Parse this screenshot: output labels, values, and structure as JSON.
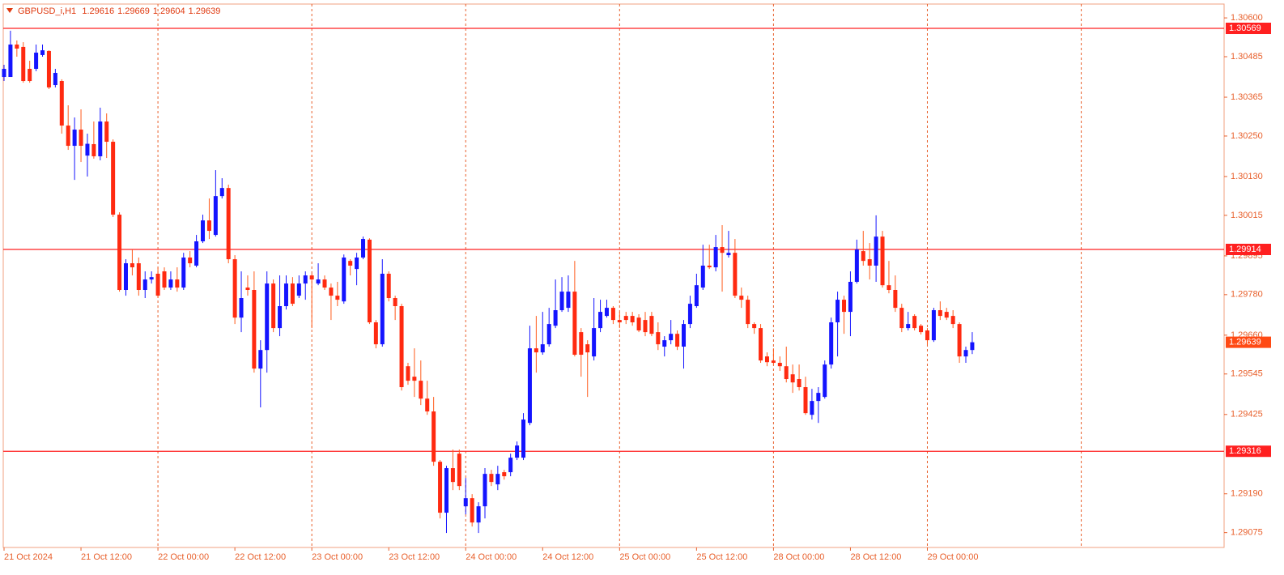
{
  "chart_data": {
    "type": "candlestick",
    "title": "GBPUSD_i,H1",
    "categories": [
      "21 Oct 2024",
      null,
      null,
      null,
      null,
      null,
      null,
      null,
      null,
      null,
      null,
      null,
      "21 Oct 12:00",
      null,
      null,
      null,
      null,
      null,
      null,
      null,
      null,
      null,
      null,
      null,
      "22 Oct 00:00",
      null,
      null,
      null,
      null,
      null,
      null,
      null,
      null,
      null,
      null,
      null,
      "22 Oct 12:00",
      null,
      null,
      null,
      null,
      null,
      null,
      null,
      null,
      null,
      null,
      null,
      "23 Oct 00:00",
      null,
      null,
      null,
      null,
      null,
      null,
      null,
      null,
      null,
      null,
      null,
      "23 Oct 12:00",
      null,
      null,
      null,
      null,
      null,
      null,
      null,
      null,
      null,
      null,
      null,
      "24 Oct 00:00",
      null,
      null,
      null,
      null,
      null,
      null,
      null,
      null,
      null,
      null,
      null,
      "24 Oct 12:00",
      null,
      null,
      null,
      null,
      null,
      null,
      null,
      null,
      null,
      null,
      null,
      "25 Oct 00:00",
      null,
      null,
      null,
      null,
      null,
      null,
      null,
      null,
      null,
      null,
      null,
      "25 Oct 12:00",
      null,
      null,
      null,
      null,
      null,
      null,
      null,
      null,
      null,
      null,
      null,
      "28 Oct 00:00",
      null,
      null,
      null,
      null,
      null,
      null,
      null,
      null,
      null,
      null,
      null,
      "28 Oct 12:00",
      null,
      null,
      null,
      null,
      null,
      null,
      null,
      null,
      null,
      null,
      null,
      "29 Oct 00:00",
      null,
      null,
      null,
      null,
      null,
      null,
      null
    ],
    "open": [
      1.30425,
      1.30425,
      1.30521,
      1.30514,
      1.30449,
      1.30449,
      1.3049,
      1.30502,
      1.30401,
      1.30413,
      1.30281,
      1.30221,
      1.30269,
      1.30192,
      1.30226,
      1.3019,
      1.30293,
      1.30233,
      1.30017,
      1.29794,
      1.29873,
      1.29873,
      1.29794,
      1.29825,
      1.29842,
      1.29849,
      1.29801,
      1.29825,
      1.29801,
      1.2989,
      1.29866,
      1.29938,
      1.3,
      1.29957,
      1.30072,
      1.30096,
      1.29885,
      1.29712,
      1.29801,
      1.29794,
      1.29561,
      1.29616,
      1.29813,
      1.29681,
      1.29746,
      1.29813,
      1.29777,
      1.29813,
      1.29837,
      1.29813,
      1.29825,
      1.29801,
      1.29777,
      1.2976,
      1.2988,
      1.29856,
      1.2989,
      1.29943,
      1.29698,
      1.29633,
      1.29842,
      1.2977,
      1.29746,
      1.29568,
      1.29537,
      1.29525,
      1.29472,
      1.29434,
      1.29285,
      1.29134,
      1.29266,
      1.29309,
      1.29153,
      1.29177,
      1.29105,
      1.29153,
      1.29249,
      1.29218,
      1.29254,
      1.29254,
      1.29297,
      1.29297,
      1.294,
      1.29621,
      1.29609,
      1.29633,
      1.29688,
      1.29734,
      1.29741,
      1.29789,
      1.29669,
      1.29633,
      1.29597,
      1.29681,
      1.29717,
      1.29741,
      1.29705,
      1.29717,
      1.29717,
      1.29712,
      1.29705,
      1.29717,
      1.29669,
      1.29626,
      1.29645,
      1.29664,
      1.29626,
      1.29693,
      1.29746,
      1.29801,
      1.29866,
      1.29861,
      1.29921,
      1.29897,
      1.29904,
      1.29777,
      1.29765,
      1.29693,
      1.29681,
      1.29597,
      1.29585,
      1.29578,
      1.29568,
      1.29544,
      1.2953,
      1.29506,
      1.29424,
      1.29465,
      1.29477,
      1.29573,
      1.29698,
      1.29765,
      1.29729,
      1.29818,
      1.29909,
      1.29885,
      1.29866,
      1.29952,
      1.29808,
      1.29794,
      1.29741,
      1.29681,
      1.29717,
      1.29688,
      1.29674,
      1.29645,
      1.29734,
      1.29729,
      1.29717,
      1.29693,
      1.29597,
      1.29616
    ],
    "high": [
      1.30461,
      1.30562,
      1.30533,
      1.30528,
      1.30473,
      1.30521,
      1.30521,
      1.30504,
      1.30449,
      1.30418,
      1.30341,
      1.30305,
      1.30329,
      1.30257,
      1.30293,
      1.30334,
      1.30317,
      1.3024,
      1.30024,
      1.29885,
      1.29914,
      1.2989,
      1.29849,
      1.29849,
      1.29861,
      1.29861,
      1.29849,
      1.29861,
      1.29904,
      1.29909,
      1.29957,
      1.30017,
      1.30065,
      1.30149,
      1.30125,
      1.30106,
      1.29897,
      1.29849,
      1.29837,
      1.29849,
      1.29645,
      1.29849,
      1.29825,
      1.29837,
      1.29837,
      1.29832,
      1.29837,
      1.29849,
      1.29842,
      1.29873,
      1.29837,
      1.29813,
      1.29818,
      1.29899,
      1.29885,
      1.29904,
      1.29952,
      1.29947,
      1.29705,
      1.29885,
      1.29849,
      1.29777,
      1.29753,
      1.29578,
      1.29621,
      1.29585,
      1.29525,
      1.29477,
      1.2929,
      1.29273,
      1.29321,
      1.29321,
      1.29237,
      1.29189,
      1.29165,
      1.29266,
      1.29261,
      1.29273,
      1.29261,
      1.29309,
      1.29345,
      1.29429,
      1.29688,
      1.29717,
      1.29729,
      1.29741,
      1.29825,
      1.29832,
      1.29837,
      1.2988,
      1.29681,
      1.29645,
      1.2977,
      1.29765,
      1.29765,
      1.29746,
      1.29729,
      1.29729,
      1.29729,
      1.29722,
      1.29729,
      1.29729,
      1.29698,
      1.29657,
      1.29705,
      1.29674,
      1.29705,
      1.29777,
      1.29842,
      1.29928,
      1.29928,
      1.29957,
      1.29986,
      1.29969,
      1.29945,
      1.29801,
      1.29777,
      1.29698,
      1.29693,
      1.29609,
      1.29621,
      1.29597,
      1.29626,
      1.29573,
      1.29573,
      1.29537,
      1.29501,
      1.29506,
      1.29585,
      1.29712,
      1.29789,
      1.29777,
      1.29849,
      1.29943,
      1.29969,
      1.29933,
      1.30015,
      1.29969,
      1.2988,
      1.29837,
      1.29753,
      1.29729,
      1.29722,
      1.29693,
      1.29681,
      1.29741,
      1.2976,
      1.29741,
      1.29734,
      1.29698,
      1.29626,
      1.29669
    ],
    "low": [
      1.30413,
      1.30425,
      1.30485,
      1.30408,
      1.30408,
      1.30442,
      1.30485,
      1.30389,
      1.30394,
      1.30257,
      1.30209,
      1.3012,
      1.30173,
      1.3013,
      1.30183,
      1.30178,
      1.30185,
      1.3001,
      1.29789,
      1.29777,
      1.29837,
      1.29777,
      1.2977,
      1.29813,
      1.2977,
      1.29794,
      1.29794,
      1.29789,
      1.29794,
      1.29861,
      1.29861,
      1.29933,
      1.29945,
      1.29952,
      1.30065,
      1.29873,
      1.29693,
      1.29669,
      1.29777,
      1.29549,
      1.29446,
      1.29549,
      1.29669,
      1.29657,
      1.29736,
      1.29746,
      1.2977,
      1.29765,
      1.29681,
      1.29808,
      1.29794,
      1.29705,
      1.29746,
      1.29753,
      1.29837,
      1.29808,
      1.29885,
      1.29693,
      1.29621,
      1.29626,
      1.2976,
      1.29705,
      1.29496,
      1.29513,
      1.29477,
      1.29453,
      1.29424,
      1.29273,
      1.29117,
      1.29074,
      1.29201,
      1.29201,
      1.29129,
      1.29093,
      1.29074,
      1.29117,
      1.29213,
      1.29201,
      1.29232,
      1.29242,
      1.2929,
      1.2929,
      1.29393,
      1.29549,
      1.29602,
      1.29626,
      1.29681,
      1.29729,
      1.29729,
      1.29597,
      1.29537,
      1.29477,
      1.29585,
      1.29669,
      1.29712,
      1.29693,
      1.29681,
      1.29693,
      1.29688,
      1.29669,
      1.29657,
      1.29657,
      1.29616,
      1.29597,
      1.29633,
      1.29616,
      1.29561,
      1.29681,
      1.29741,
      1.29794,
      1.29856,
      1.29849,
      1.29789,
      1.2989,
      1.2977,
      1.29741,
      1.29681,
      1.29664,
      1.29578,
      1.29568,
      1.29573,
      1.29554,
      1.2952,
      1.29489,
      1.29496,
      1.29424,
      1.2941,
      1.294,
      1.29472,
      1.29561,
      1.29597,
      1.29664,
      1.29657,
      1.29813,
      1.29866,
      1.29825,
      1.29818,
      1.29801,
      1.29784,
      1.29729,
      1.29669,
      1.29674,
      1.29674,
      1.29662,
      1.29633,
      1.2964,
      1.29705,
      1.29705,
      1.29681,
      1.29578,
      1.29578,
      1.29604
    ],
    "close": [
      1.30449,
      1.30521,
      1.30509,
      1.30413,
      1.30413,
      1.30497,
      1.30504,
      1.30394,
      1.30437,
      1.30281,
      1.30221,
      1.30269,
      1.30221,
      1.30227,
      1.3019,
      1.30293,
      1.30233,
      1.30017,
      1.29794,
      1.29873,
      1.29861,
      1.29794,
      1.29825,
      1.29832,
      1.29777,
      1.29801,
      1.29825,
      1.29801,
      1.2989,
      1.29873,
      1.29938,
      1.3,
      1.29969,
      1.30072,
      1.30096,
      1.29885,
      1.29712,
      1.2977,
      1.29794,
      1.29561,
      1.29616,
      1.29813,
      1.29681,
      1.29746,
      1.29813,
      1.29753,
      1.29813,
      1.29837,
      1.29825,
      1.29825,
      1.29801,
      1.29777,
      1.29765,
      1.2989,
      1.29866,
      1.2989,
      1.29945,
      1.29698,
      1.29633,
      1.29842,
      1.2977,
      1.29746,
      1.29506,
      1.29525,
      1.29525,
      1.29472,
      1.29434,
      1.29285,
      1.29134,
      1.29266,
      1.29225,
      1.29213,
      1.29177,
      1.29105,
      1.29153,
      1.29249,
      1.29225,
      1.29249,
      1.29242,
      1.29297,
      1.29333,
      1.2941,
      1.29621,
      1.29609,
      1.29633,
      1.29693,
      1.29734,
      1.29789,
      1.29789,
      1.29602,
      1.29602,
      1.29609,
      1.29681,
      1.29729,
      1.29741,
      1.29705,
      1.29698,
      1.29705,
      1.29698,
      1.29674,
      1.29669,
      1.29664,
      1.29633,
      1.29645,
      1.29664,
      1.29626,
      1.29693,
      1.29753,
      1.29808,
      1.29866,
      1.29861,
      1.29921,
      1.29904,
      1.29904,
      1.29777,
      1.29765,
      1.29693,
      1.29681,
      1.29585,
      1.2958,
      1.29578,
      1.29568,
      1.2953,
      1.2952,
      1.29506,
      1.29429,
      1.29465,
      1.29489,
      1.29573,
      1.29698,
      1.29765,
      1.29729,
      1.29818,
      1.29914,
      1.2988,
      1.29866,
      1.29952,
      1.29808,
      1.29794,
      1.29741,
      1.29681,
      1.29693,
      1.29681,
      1.29669,
      1.29645,
      1.29734,
      1.29717,
      1.29712,
      1.29693,
      1.29597,
      1.29616,
      1.29639
    ],
    "up_color": "#1414ff",
    "down_color": "#ff2a10",
    "up_wick_color": "#1414ff",
    "down_wick_color": "#ff5a1a",
    "hlines": [
      1.30569,
      1.29914,
      1.29316
    ],
    "hline_color": "#ff2020",
    "last_price_color": "#ff4a14",
    "ylim": [
      1.29031,
      1.30641
    ],
    "yticks": [
      {
        "value": 1.306,
        "label": "1.30600"
      },
      1.30485,
      1.30365,
      {
        "value": 1.3025,
        "label": "1.30250"
      },
      {
        "value": 1.3013,
        "label": "1.30130"
      },
      1.30015,
      1.29895,
      {
        "value": 1.2978,
        "label": "1.29780"
      },
      {
        "value": 1.2966,
        "label": "1.29660"
      },
      1.29545,
      1.29425,
      {
        "value": 1.2919,
        "label": "1.29190"
      },
      1.29075
    ],
    "grid": true
  }
}
